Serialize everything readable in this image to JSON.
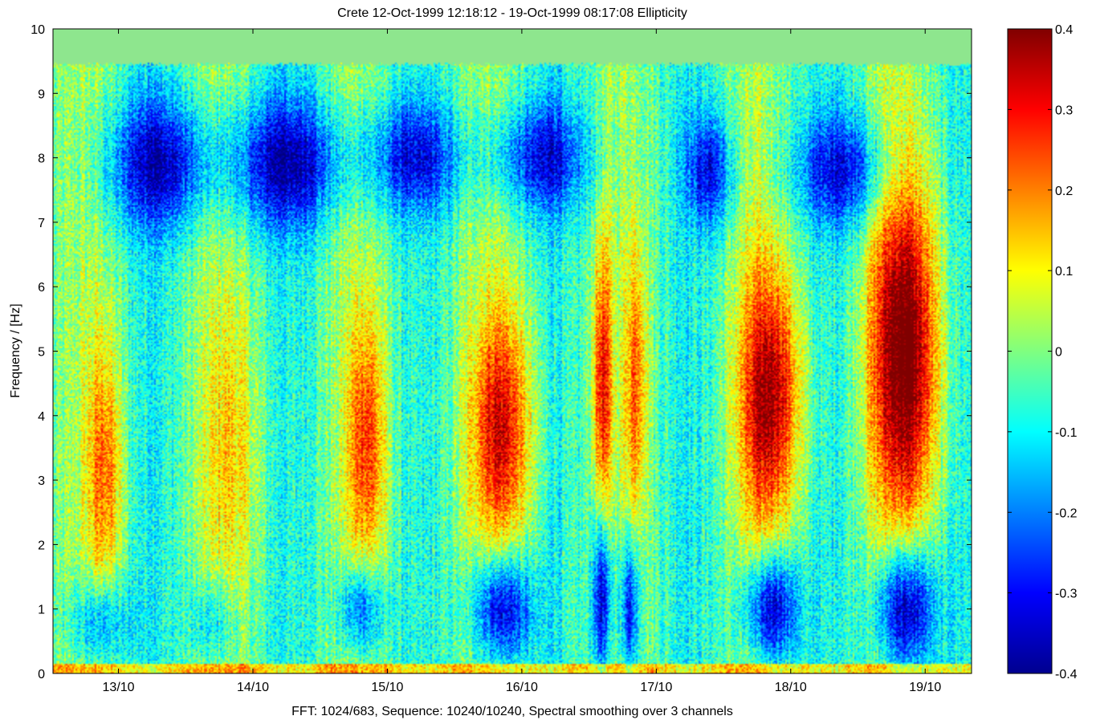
{
  "chart_data": {
    "type": "heatmap",
    "title": "Crete   12-Oct-1999 12:18:12 - 19-Oct-1999 08:17:08   Ellipticity",
    "xlabel": "FFT: 1024/683, Sequence: 10240/10240, Spectral smoothing over 3 channels",
    "ylabel": "Frequency / [Hz]",
    "x_range_days": [
      "12-Oct-1999 12:18:12",
      "19-Oct-1999 08:17:08"
    ],
    "xlim_days_oct": [
      12.513,
      19.345
    ],
    "x_ticks": [
      {
        "value": 13,
        "label": "13/10"
      },
      {
        "value": 14,
        "label": "14/10"
      },
      {
        "value": 15,
        "label": "15/10"
      },
      {
        "value": 16,
        "label": "16/10"
      },
      {
        "value": 17,
        "label": "17/10"
      },
      {
        "value": 18,
        "label": "18/10"
      },
      {
        "value": 19,
        "label": "19/10"
      }
    ],
    "ylim": [
      0,
      10
    ],
    "y_ticks": [
      "0",
      "1",
      "2",
      "3",
      "4",
      "5",
      "6",
      "7",
      "8",
      "9",
      "10"
    ],
    "nyquist_hz": 9.45,
    "above_nyquist_color": "#8ee68e",
    "colorbar": {
      "colormap": "jet",
      "range": [
        -0.4,
        0.4
      ],
      "ticks": [
        "0.4",
        "0.3",
        "0.2",
        "0.1",
        "0",
        "-0.1",
        "-0.2",
        "-0.3",
        "-0.4"
      ]
    },
    "features": {
      "night_blue_bands_8hz": [
        {
          "x": 13.3,
          "y": 7.9,
          "amp": -0.28,
          "sx": 0.28,
          "sy": 0.7
        },
        {
          "x": 14.25,
          "y": 7.9,
          "amp": -0.3,
          "sx": 0.3,
          "sy": 0.7
        },
        {
          "x": 15.2,
          "y": 8.0,
          "amp": -0.25,
          "sx": 0.25,
          "sy": 0.6
        },
        {
          "x": 16.15,
          "y": 8.0,
          "amp": -0.25,
          "sx": 0.25,
          "sy": 0.6
        },
        {
          "x": 17.4,
          "y": 7.8,
          "amp": -0.25,
          "sx": 0.12,
          "sy": 0.6
        },
        {
          "x": 18.4,
          "y": 7.8,
          "amp": -0.25,
          "sx": 0.25,
          "sy": 0.6
        }
      ],
      "red_events": [
        {
          "x": 12.9,
          "y": 3.2,
          "amp": 0.22,
          "sx": 0.09,
          "sy": 1.4
        },
        {
          "x": 13.85,
          "y": 3.5,
          "amp": 0.12,
          "sx": 0.15,
          "sy": 1.6
        },
        {
          "x": 14.85,
          "y": 3.6,
          "amp": 0.25,
          "sx": 0.1,
          "sy": 1.4
        },
        {
          "x": 15.85,
          "y": 3.8,
          "amp": 0.32,
          "sx": 0.16,
          "sy": 1.3
        },
        {
          "x": 16.6,
          "y": 4.5,
          "amp": 0.3,
          "sx": 0.05,
          "sy": 1.5
        },
        {
          "x": 16.85,
          "y": 4.5,
          "amp": 0.22,
          "sx": 0.06,
          "sy": 1.5
        },
        {
          "x": 17.85,
          "y": 4.3,
          "amp": 0.38,
          "sx": 0.16,
          "sy": 1.4
        },
        {
          "x": 18.85,
          "y": 5.0,
          "amp": 0.45,
          "sx": 0.18,
          "sy": 1.9
        }
      ],
      "blue_low_freq_events": [
        {
          "x": 12.85,
          "y": 0.8,
          "amp": -0.2,
          "sx": 0.15,
          "sy": 0.5
        },
        {
          "x": 13.7,
          "y": 0.8,
          "amp": -0.15,
          "sx": 0.12,
          "sy": 0.5
        },
        {
          "x": 14.8,
          "y": 1.0,
          "amp": -0.25,
          "sx": 0.12,
          "sy": 0.5
        },
        {
          "x": 15.85,
          "y": 1.0,
          "amp": -0.35,
          "sx": 0.15,
          "sy": 0.6
        },
        {
          "x": 16.6,
          "y": 1.2,
          "amp": -0.35,
          "sx": 0.05,
          "sy": 0.9
        },
        {
          "x": 16.8,
          "y": 1.0,
          "amp": -0.3,
          "sx": 0.05,
          "sy": 0.8
        },
        {
          "x": 17.85,
          "y": 1.0,
          "amp": -0.35,
          "sx": 0.14,
          "sy": 0.6
        },
        {
          "x": 18.85,
          "y": 1.0,
          "amp": -0.4,
          "sx": 0.15,
          "sy": 0.7
        }
      ],
      "positive_lowest_band_hz": 0.15
    }
  }
}
